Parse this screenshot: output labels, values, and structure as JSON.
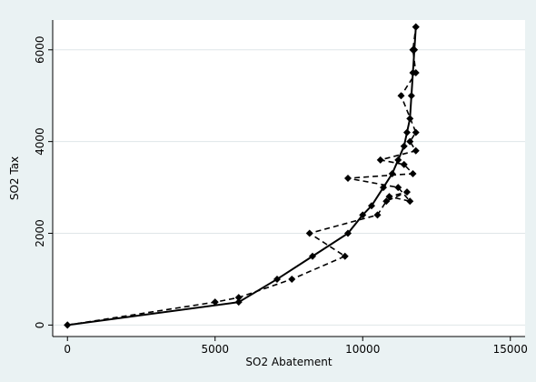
{
  "chart_data": {
    "type": "line",
    "x_label": "SO2 Abatement",
    "y_label": "SO2 Tax",
    "xlim": [
      -500,
      15500
    ],
    "ylim": [
      -250,
      6650
    ],
    "xticks": [
      0,
      5000,
      10000,
      15000
    ],
    "yticks": [
      0,
      2000,
      4000,
      6000
    ],
    "grid": true,
    "series": [
      {
        "color": "#000000",
        "dash": false,
        "x": [
          0,
          5800,
          7100,
          8300,
          9500,
          10000,
          10300,
          10700,
          11000,
          11200,
          11400,
          11500,
          11600,
          11650,
          11700,
          11750,
          11800
        ],
        "values": [
          0,
          500,
          1000,
          1500,
          2000,
          2400,
          2600,
          3000,
          3300,
          3600,
          3900,
          4200,
          4500,
          5000,
          5500,
          6000,
          6500
        ]
      },
      {
        "color": "#000000",
        "dash": true,
        "x": [
          0,
          5000,
          5800,
          7600,
          9400,
          8200,
          10500,
          10800,
          11500,
          10900,
          11600,
          11200,
          9500,
          11700,
          11400,
          10600,
          11800,
          11600,
          11800,
          11300,
          11800,
          11700,
          11800
        ],
        "values": [
          0,
          500,
          600,
          1000,
          1500,
          2000,
          2400,
          2700,
          2900,
          2800,
          2700,
          3000,
          3200,
          3300,
          3500,
          3600,
          3800,
          4000,
          4200,
          5000,
          5500,
          6000,
          6500
        ]
      }
    ]
  }
}
